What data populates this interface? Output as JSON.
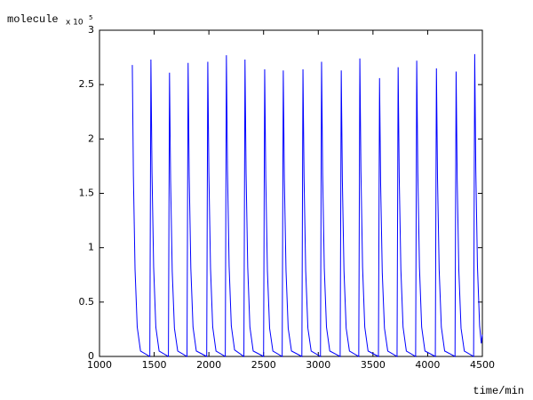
{
  "chart_data": {
    "type": "line",
    "ylabel": "molecule",
    "y_multiplier": "x 10",
    "y_multiplier_exponent": "5",
    "xlabel": "time/min",
    "x": [
      1300,
      1310,
      1325,
      1345,
      1375,
      1460,
      1470,
      1480,
      1495,
      1515,
      1545,
      1630,
      1640,
      1650,
      1665,
      1685,
      1715,
      1800,
      1810,
      1820,
      1835,
      1855,
      1885,
      1980,
      1990,
      2000,
      2015,
      2035,
      2065,
      2150,
      2160,
      2170,
      2185,
      2205,
      2235,
      2320,
      2330,
      2340,
      2355,
      2375,
      2405,
      2500,
      2510,
      2520,
      2535,
      2555,
      2585,
      2670,
      2680,
      2690,
      2705,
      2725,
      2755,
      2850,
      2860,
      2870,
      2885,
      2905,
      2935,
      3020,
      3030,
      3040,
      3055,
      3075,
      3105,
      3200,
      3210,
      3220,
      3235,
      3255,
      3285,
      3370,
      3380,
      3390,
      3405,
      3425,
      3455,
      3550,
      3560,
      3570,
      3585,
      3605,
      3635,
      3720,
      3730,
      3740,
      3755,
      3775,
      3805,
      3890,
      3900,
      3910,
      3925,
      3945,
      3975,
      4070,
      4080,
      4090,
      4105,
      4125,
      4155,
      4250,
      4260,
      4270,
      4285,
      4305,
      4335,
      4420,
      4430,
      4440,
      4455,
      4475,
      4490,
      4500
    ],
    "series": [
      {
        "color": "#0000ff",
        "values": [
          2.68,
          1.66,
          0.8,
          0.27,
          0.05,
          0,
          2.73,
          1.69,
          0.82,
          0.27,
          0.05,
          0,
          2.61,
          1.62,
          0.78,
          0.26,
          0.05,
          0,
          2.7,
          1.67,
          0.81,
          0.27,
          0.05,
          0,
          2.71,
          1.68,
          0.81,
          0.27,
          0.05,
          0,
          2.77,
          1.72,
          0.83,
          0.28,
          0.06,
          0,
          2.73,
          1.69,
          0.82,
          0.27,
          0.05,
          0,
          2.64,
          1.64,
          0.79,
          0.26,
          0.05,
          0,
          2.63,
          1.63,
          0.79,
          0.26,
          0.05,
          0,
          2.64,
          1.64,
          0.79,
          0.26,
          0.05,
          0,
          2.71,
          1.68,
          0.81,
          0.27,
          0.05,
          0,
          2.63,
          1.63,
          0.79,
          0.26,
          0.05,
          0,
          2.74,
          1.7,
          0.82,
          0.27,
          0.05,
          0,
          2.56,
          1.59,
          0.77,
          0.26,
          0.05,
          0,
          2.66,
          1.65,
          0.8,
          0.27,
          0.05,
          0,
          2.72,
          1.69,
          0.82,
          0.27,
          0.05,
          0,
          2.65,
          1.64,
          0.8,
          0.27,
          0.05,
          0,
          2.62,
          1.62,
          0.79,
          0.26,
          0.05,
          0,
          2.78,
          1.72,
          0.83,
          0.28,
          0.12,
          0.2
        ]
      }
    ],
    "xlim": [
      1000,
      4500
    ],
    "xticks": [
      1000,
      1500,
      2000,
      2500,
      3000,
      3500,
      4000,
      4500
    ],
    "ylim": [
      0,
      3
    ],
    "yticks": [
      0,
      0.5,
      1,
      1.5,
      2,
      2.5,
      3
    ],
    "grid": false
  }
}
